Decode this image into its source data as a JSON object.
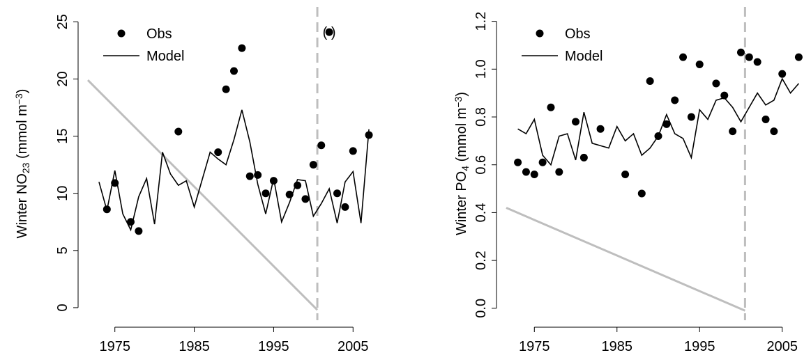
{
  "chart_data": [
    {
      "type": "line",
      "ylabel": [
        {
          "text": "Winter NO"
        },
        {
          "text": "23",
          "style": "sub"
        },
        {
          "text": " (mmol  m"
        },
        {
          "text": "−3",
          "style": "sup"
        },
        {
          "text": ")"
        }
      ],
      "x": [
        1973,
        1974,
        1975,
        1976,
        1977,
        1978,
        1979,
        1980,
        1981,
        1982,
        1983,
        1984,
        1985,
        1986,
        1987,
        1988,
        1989,
        1990,
        1991,
        1992,
        1993,
        1994,
        1995,
        1996,
        1997,
        1998,
        1999,
        2000,
        2001,
        2002,
        2003,
        2004,
        2005,
        2006,
        2007
      ],
      "series": [
        {
          "name": "Obs",
          "color": "#000000",
          "style": "points",
          "values": [
            null,
            8.6,
            10.9,
            null,
            7.5,
            6.7,
            null,
            null,
            null,
            null,
            15.4,
            null,
            null,
            null,
            null,
            13.6,
            19.1,
            20.7,
            22.7,
            11.5,
            11.6,
            10.0,
            11.1,
            null,
            9.9,
            10.7,
            9.5,
            12.5,
            14.2,
            24.1,
            10.0,
            8.8,
            13.7,
            null,
            15.1
          ]
        },
        {
          "name": "Model",
          "color": "#000000",
          "style": "line",
          "values": [
            11.0,
            8.5,
            12.0,
            8.2,
            6.8,
            9.7,
            11.3,
            7.3,
            13.6,
            11.7,
            10.7,
            11.1,
            8.8,
            11.2,
            13.6,
            13.0,
            12.5,
            14.7,
            17.3,
            14.5,
            10.8,
            8.2,
            11.3,
            7.5,
            9.2,
            11.2,
            11.1,
            8.0,
            9.1,
            10.4,
            7.4,
            11.0,
            11.9,
            7.4,
            15.6
          ]
        }
      ],
      "reference_line": {
        "x": [
          1971.6,
          2000.5
        ],
        "values": [
          19.9,
          -0.2
        ],
        "color": "#bebebe"
      },
      "vline": {
        "x": 2000.5,
        "color": "#bebebe"
      },
      "annotation": "(   )",
      "xlim": [
        1971.6,
        2008.4
      ],
      "ylim": [
        -1.1,
        26.3
      ],
      "xticks": [
        1975,
        1985,
        1995,
        2005
      ],
      "yticks": [
        0,
        5,
        10,
        15,
        20,
        25
      ],
      "legend": "upper left"
    },
    {
      "type": "line",
      "ylabel": [
        {
          "text": "Winter PO"
        },
        {
          "text": "4",
          "style": "sub"
        },
        {
          "text": " (mmol  m"
        },
        {
          "text": "−3",
          "style": "sup"
        },
        {
          "text": ")"
        }
      ],
      "x": [
        1973,
        1974,
        1975,
        1976,
        1977,
        1978,
        1979,
        1980,
        1981,
        1982,
        1983,
        1984,
        1985,
        1986,
        1987,
        1988,
        1989,
        1990,
        1991,
        1992,
        1993,
        1994,
        1995,
        1996,
        1997,
        1998,
        1999,
        2000,
        2001,
        2002,
        2003,
        2004,
        2005,
        2006,
        2007
      ],
      "series": [
        {
          "name": "Obs",
          "color": "#000000",
          "style": "points",
          "values": [
            0.61,
            0.57,
            0.56,
            0.61,
            0.84,
            0.57,
            null,
            0.78,
            0.63,
            null,
            0.75,
            null,
            null,
            0.56,
            null,
            0.48,
            0.95,
            0.72,
            0.77,
            0.87,
            1.05,
            0.8,
            1.02,
            null,
            0.94,
            0.89,
            0.74,
            1.07,
            1.05,
            1.03,
            0.79,
            0.74,
            0.98,
            null,
            1.05
          ]
        },
        {
          "name": "Model",
          "color": "#000000",
          "style": "line",
          "values": [
            0.75,
            0.73,
            0.79,
            0.64,
            0.6,
            0.72,
            0.73,
            0.62,
            0.82,
            0.69,
            0.68,
            0.67,
            0.76,
            0.7,
            0.73,
            0.64,
            0.67,
            0.72,
            0.81,
            0.73,
            0.71,
            0.63,
            0.83,
            0.79,
            0.87,
            0.88,
            0.84,
            0.78,
            0.84,
            0.9,
            0.85,
            0.87,
            0.96,
            0.9,
            0.94
          ]
        }
      ],
      "reference_line": {
        "x": [
          1971.6,
          2000.5
        ],
        "values": [
          0.42,
          -0.01
        ],
        "color": "#bebebe"
      },
      "vline": {
        "x": 2000.5,
        "color": "#bebebe"
      },
      "xlim": [
        1971.6,
        2008.4
      ],
      "ylim": [
        -0.05,
        1.26
      ],
      "xticks": [
        1975,
        1985,
        1995,
        2005
      ],
      "yticks": [
        {
          "value": 0,
          "label": "0.0"
        },
        0.2,
        0.4,
        0.6,
        0.8,
        {
          "value": 1,
          "label": "1.0"
        },
        1.2
      ],
      "legend": "upper left"
    }
  ]
}
